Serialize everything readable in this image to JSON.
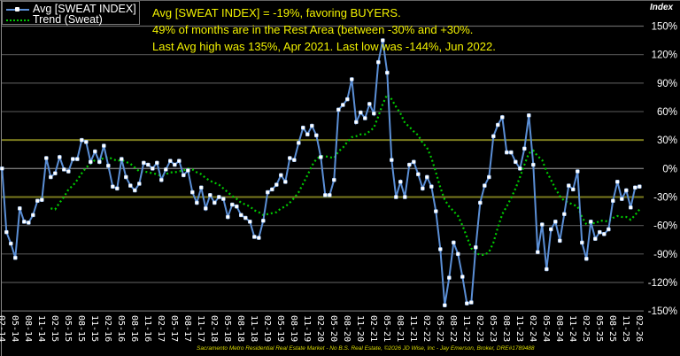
{
  "chart_data": {
    "type": "line",
    "y_axis_title": "Index",
    "ylim": [
      -150,
      150
    ],
    "y_ticks": [
      150,
      120,
      90,
      60,
      30,
      0,
      -30,
      -60,
      -90,
      -120,
      -150
    ],
    "y_tick_suffix": "%",
    "y_axis_position": "right",
    "grid": true,
    "rest_area_band": [
      -30,
      30
    ],
    "legend_position": "top-left",
    "x_tick_labels": [
      "02-14",
      "05-14",
      "08-14",
      "11-14",
      "02-15",
      "05-15",
      "08-15",
      "11-15",
      "02-16",
      "05-16",
      "08-16",
      "11-16",
      "02-17",
      "05-17",
      "08-17",
      "11-17",
      "02-18",
      "05-18",
      "08-18",
      "11-18",
      "02-19",
      "05-19",
      "08-19",
      "11-19",
      "02-20",
      "05-20",
      "08-20",
      "11-20",
      "02-21",
      "05-21",
      "08-21",
      "11-21",
      "02-22",
      "05-22",
      "08-22",
      "11-22",
      "02-23",
      "05-23",
      "08-23",
      "11-23",
      "02-24",
      "05-24",
      "08-24",
      "11-24",
      "02-25",
      "05-25",
      "08-25",
      "11-25",
      "02-26"
    ],
    "x_frequency": "monthly",
    "series": [
      {
        "name": "Avg [SWEAT INDEX]",
        "color": "#5b8fd6",
        "marker_color": "#ffffff",
        "values": [
          0,
          -67,
          -79,
          -94,
          -42,
          -56,
          -57,
          -49,
          -34,
          -33,
          11,
          -9,
          -5,
          12,
          -1,
          -3,
          10,
          10,
          30,
          28,
          7,
          18,
          7,
          24,
          3,
          -19,
          -21,
          10,
          -9,
          -18,
          -23,
          -16,
          6,
          4,
          0,
          6,
          -12,
          -1,
          8,
          4,
          8,
          -7,
          -2,
          -25,
          -36,
          -20,
          -42,
          -28,
          -36,
          -30,
          -32,
          -51,
          -38,
          -40,
          -49,
          -52,
          -56,
          -72,
          -73,
          -55,
          -25,
          -22,
          -17,
          -7,
          -14,
          11,
          9,
          27,
          43,
          36,
          45,
          35,
          12,
          -28,
          -28,
          -12,
          62,
          67,
          73,
          94,
          49,
          59,
          53,
          68,
          58,
          112,
          135,
          101,
          9,
          -30,
          -14,
          -30,
          4,
          7,
          -6,
          -21,
          -9,
          -19,
          -45,
          -85,
          -144,
          -115,
          -78,
          -90,
          -114,
          -142,
          -141,
          -83,
          -36,
          -18,
          -9,
          34,
          46,
          54,
          17,
          17,
          7,
          0,
          21,
          56,
          4,
          -88,
          -59,
          -106,
          -64,
          -56,
          -76,
          -48,
          -18,
          -22,
          -3,
          -78,
          -95,
          -56,
          -74,
          -67,
          -69,
          -64,
          -34,
          -14,
          -32,
          -23,
          -41,
          -20,
          -19
        ]
      },
      {
        "name": "Trend (Sweat)",
        "color": "#00cc00",
        "start_index": 11,
        "values": [
          -42,
          -43,
          -36,
          -30,
          -22,
          -18,
          -12,
          -5,
          1,
          5,
          9,
          9,
          11,
          12,
          10,
          8,
          9,
          7,
          5,
          1,
          -3,
          -3,
          -4,
          -5,
          -6,
          -8,
          -6,
          -4,
          -4,
          -3,
          -2,
          0,
          -1,
          -4,
          -6,
          -10,
          -13,
          -15,
          -17,
          -21,
          -25,
          -29,
          -32,
          -36,
          -38,
          -40,
          -44,
          -46,
          -49,
          -48,
          -47,
          -46,
          -42,
          -40,
          -36,
          -31,
          -25,
          -16,
          -7,
          3,
          10,
          13,
          13,
          12,
          11,
          18,
          22,
          28,
          33,
          34,
          36,
          36,
          39,
          43,
          55,
          68,
          78,
          73,
          65,
          58,
          48,
          44,
          39,
          35,
          27,
          22,
          11,
          -4,
          -20,
          -33,
          -40,
          -45,
          -50,
          -60,
          -72,
          -84,
          -89,
          -91,
          -91,
          -88,
          -78,
          -62,
          -48,
          -40,
          -31,
          -21,
          -9,
          4,
          16,
          19,
          13,
          9,
          -3,
          -12,
          -21,
          -29,
          -34,
          -36,
          -38,
          -40,
          -51,
          -59,
          -57,
          -58,
          -55,
          -55,
          -56,
          -52,
          -50,
          -51,
          -51,
          -54,
          -49,
          -43
        ]
      }
    ],
    "rest_line_color": "#7a7a1e",
    "grid_color": "#4a4a4a"
  },
  "annotation": {
    "line1": "Avg [SWEAT INDEX] = -19%, favoring BUYERS.",
    "line2": "49% of months are in the Rest Area (between -30% and +30%.",
    "line3": "Last Avg high was 135%, Apr 2021. Last low was -144%, Jun 2022."
  },
  "credit": "Sacramento Metro Residential Real Estate Market - No B.S. Real Estate, ©2026 JD Wise, Inc - Jay Emerson, Broker, DRE#1789488"
}
